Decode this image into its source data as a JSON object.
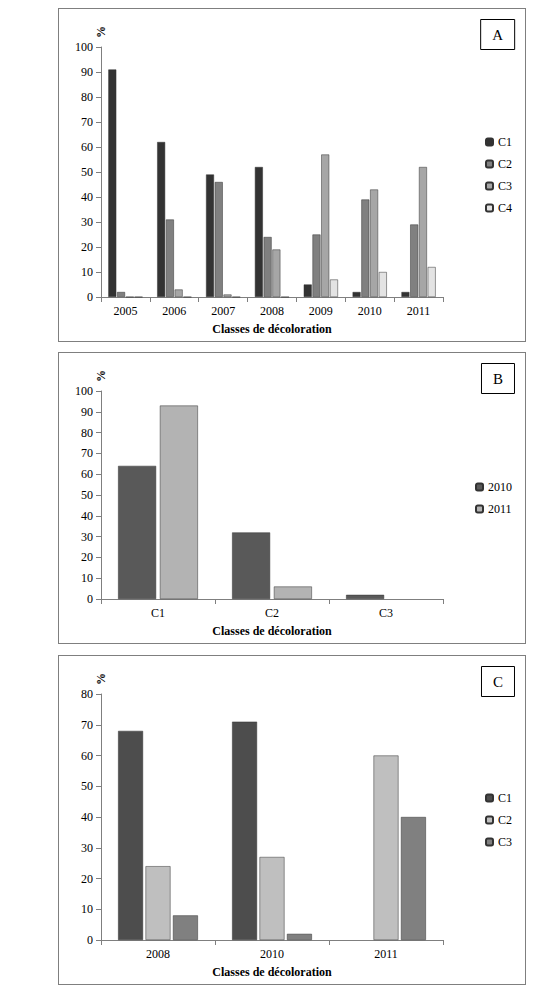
{
  "chart_data": [
    {
      "type": "bar",
      "title": "A",
      "x_label": "Classes de décoloration",
      "y_label": "%",
      "categories": [
        "2005",
        "2006",
        "2007",
        "2008",
        "2009",
        "2010",
        "2011"
      ],
      "series": [
        {
          "name": "C1",
          "color": "#333333",
          "values": [
            91,
            62,
            49,
            52,
            5,
            2,
            2
          ]
        },
        {
          "name": "C2",
          "color": "#808080",
          "values": [
            2,
            31,
            46,
            24,
            25,
            39,
            29
          ]
        },
        {
          "name": "C3",
          "color": "#a6a6a6",
          "values": [
            0,
            3,
            1,
            19,
            57,
            43,
            52
          ]
        },
        {
          "name": "C4",
          "color": "#e3e3e3",
          "values": [
            0,
            0,
            0,
            0,
            7,
            10,
            12
          ]
        }
      ],
      "ylim": [
        0,
        100
      ],
      "yticks": [
        0,
        10,
        20,
        30,
        40,
        50,
        60,
        70,
        80,
        90,
        100
      ],
      "grid": false,
      "legend": "right"
    },
    {
      "type": "bar",
      "title": "B",
      "x_label": "Classes de décoloration",
      "y_label": "%",
      "categories": [
        "C1",
        "C2",
        "C3"
      ],
      "series": [
        {
          "name": "2010",
          "color": "#595959",
          "values": [
            64,
            32,
            2
          ]
        },
        {
          "name": "2011",
          "color": "#b3b3b3",
          "values": [
            93,
            6,
            null
          ]
        }
      ],
      "ylim": [
        0,
        100
      ],
      "yticks": [
        0,
        10,
        20,
        30,
        40,
        50,
        60,
        70,
        80,
        90,
        100
      ],
      "grid": false,
      "legend": "right"
    },
    {
      "type": "bar",
      "title": "C",
      "x_label": "Classes de décoloration",
      "y_label": "%",
      "categories": [
        "2008",
        "2010",
        "2011"
      ],
      "series": [
        {
          "name": "C1",
          "color": "#4d4d4d",
          "values": [
            68,
            71,
            null
          ]
        },
        {
          "name": "C2",
          "color": "#bfbfbf",
          "values": [
            24,
            27,
            60
          ]
        },
        {
          "name": "C3",
          "color": "#808080",
          "values": [
            8,
            2,
            40
          ]
        }
      ],
      "ylim": [
        0,
        80
      ],
      "yticks": [
        0,
        10,
        20,
        30,
        40,
        50,
        60,
        70,
        80
      ],
      "grid": false,
      "legend": "right"
    }
  ]
}
